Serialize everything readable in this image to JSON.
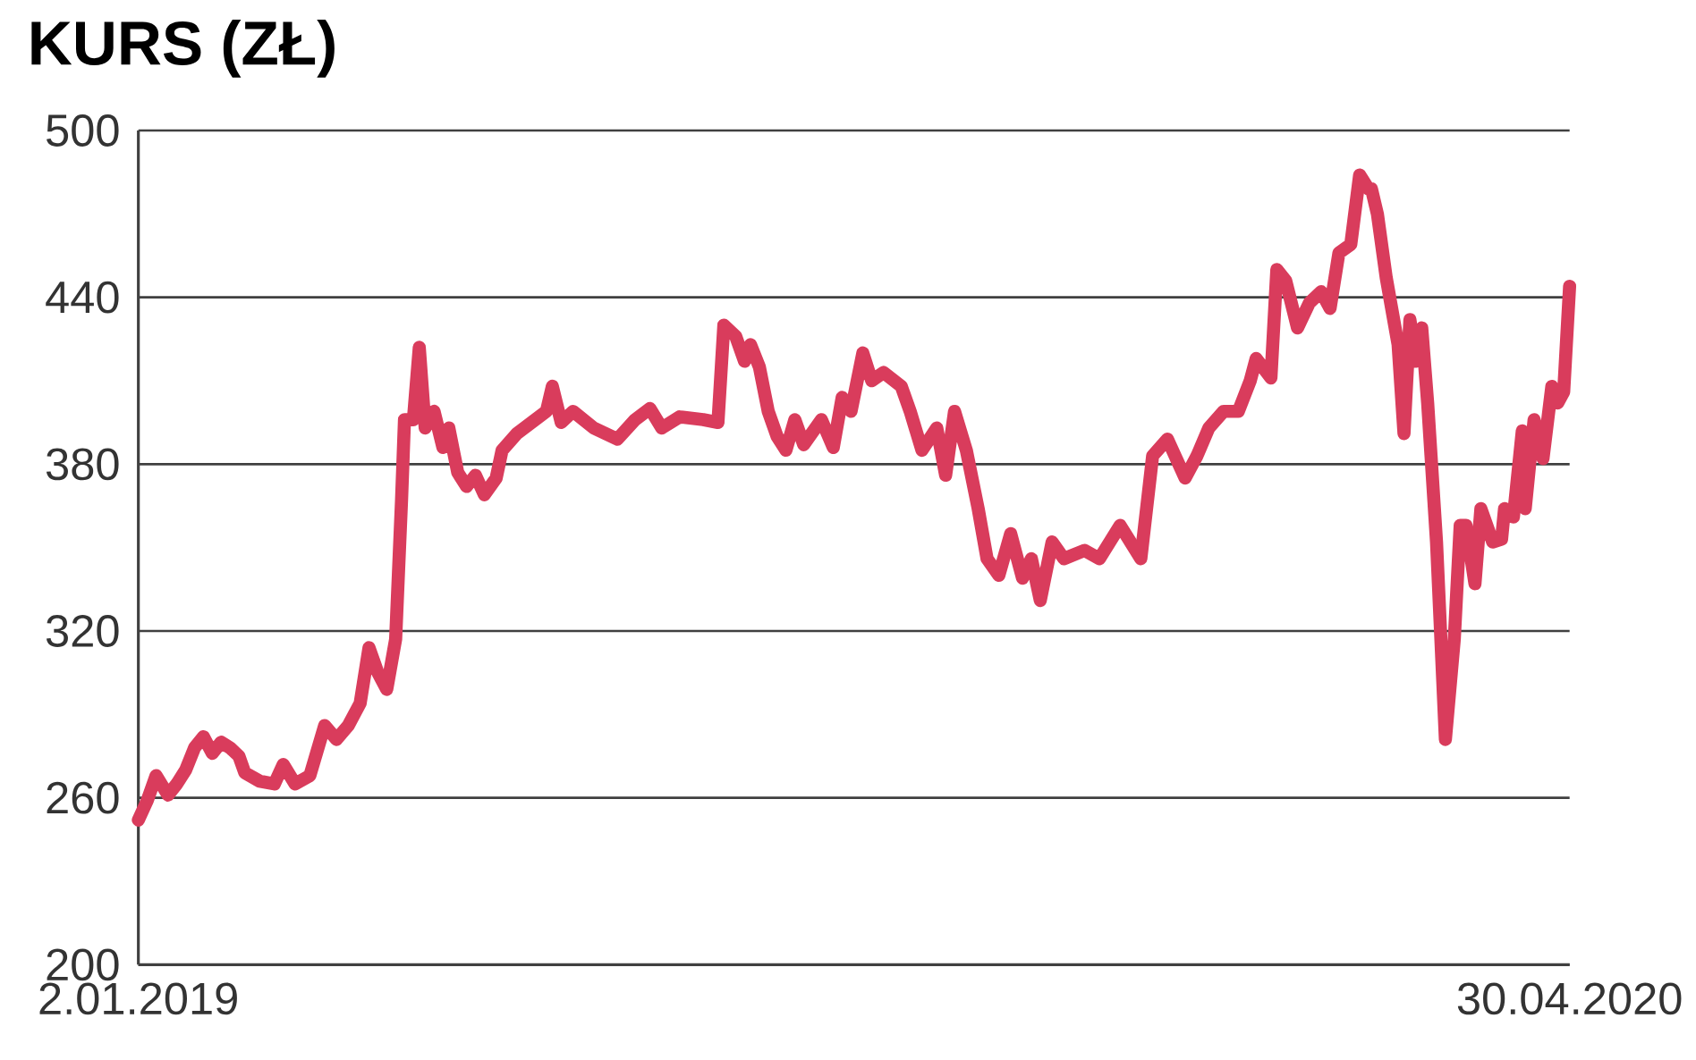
{
  "chart_data": {
    "type": "line",
    "title": "KURS (ZŁ)",
    "xlim": [
      "2019-01-02",
      "2020-04-30"
    ],
    "xticks": [
      {
        "value": "2019-01-02",
        "label": "2.01.2019"
      },
      {
        "value": "2020-04-30",
        "label": "30.04.2020"
      }
    ],
    "ylim": [
      200,
      500
    ],
    "yticks": [
      200,
      260,
      320,
      380,
      440,
      500
    ],
    "grid": "y",
    "marker": "none",
    "line_style": "solid",
    "series": [
      {
        "color": "#d93c5c",
        "x": [
          "2019-01-02",
          "2019-01-05",
          "2019-01-08",
          "2019-01-12",
          "2019-01-15",
          "2019-01-18",
          "2019-01-21",
          "2019-01-24",
          "2019-01-27",
          "2019-01-30",
          "2019-02-02",
          "2019-02-05",
          "2019-02-07",
          "2019-02-12",
          "2019-02-17",
          "2019-02-20",
          "2019-02-24",
          "2019-03-01",
          "2019-03-06",
          "2019-03-10",
          "2019-03-14",
          "2019-03-18",
          "2019-03-21",
          "2019-03-24",
          "2019-03-27",
          "2019-03-30",
          "2019-04-01",
          "2019-04-02",
          "2019-04-05",
          "2019-04-07",
          "2019-04-09",
          "2019-04-12",
          "2019-04-15",
          "2019-04-17",
          "2019-04-20",
          "2019-04-23",
          "2019-04-26",
          "2019-04-29",
          "2019-05-03",
          "2019-05-05",
          "2019-05-10",
          "2019-05-15",
          "2019-05-20",
          "2019-05-22",
          "2019-05-25",
          "2019-05-29",
          "2019-06-05",
          "2019-06-13",
          "2019-06-19",
          "2019-06-24",
          "2019-06-28",
          "2019-07-04",
          "2019-07-12",
          "2019-07-17",
          "2019-07-19",
          "2019-07-23",
          "2019-07-26",
          "2019-07-28",
          "2019-07-31",
          "2019-08-03",
          "2019-08-06",
          "2019-08-09",
          "2019-08-12",
          "2019-08-15",
          "2019-08-21",
          "2019-08-25",
          "2019-08-28",
          "2019-08-31",
          "2019-09-04",
          "2019-09-07",
          "2019-09-11",
          "2019-09-17",
          "2019-09-20",
          "2019-09-24",
          "2019-09-29",
          "2019-10-02",
          "2019-10-05",
          "2019-10-09",
          "2019-10-13",
          "2019-10-16",
          "2019-10-20",
          "2019-10-24",
          "2019-10-28",
          "2019-10-31",
          "2019-11-03",
          "2019-11-07",
          "2019-11-11",
          "2019-11-18",
          "2019-11-23",
          "2019-11-30",
          "2019-12-07",
          "2019-12-11",
          "2019-12-16",
          "2019-12-22",
          "2019-12-26",
          "2019-12-30",
          "2020-01-04",
          "2020-01-09",
          "2020-01-13",
          "2020-01-15",
          "2020-01-20",
          "2020-01-22",
          "2020-01-25",
          "2020-01-29",
          "2020-02-02",
          "2020-02-06",
          "2020-02-09",
          "2020-02-12",
          "2020-02-16",
          "2020-02-19",
          "2020-02-22",
          "2020-02-23",
          "2020-02-25",
          "2020-02-28",
          "2020-03-03",
          "2020-03-05",
          "2020-03-07",
          "2020-03-09",
          "2020-03-11",
          "2020-03-13",
          "2020-03-16",
          "2020-03-19",
          "2020-03-22",
          "2020-03-24",
          "2020-03-26",
          "2020-03-29",
          "2020-03-31",
          "2020-04-04",
          "2020-04-07",
          "2020-04-08",
          "2020-04-11",
          "2020-04-14",
          "2020-04-15",
          "2020-04-18",
          "2020-04-21",
          "2020-04-24",
          "2020-04-26",
          "2020-04-28",
          "2020-04-30"
        ],
        "values": [
          252,
          259,
          268,
          261,
          265,
          270,
          278,
          282,
          276,
          280,
          278,
          275,
          269,
          266,
          265,
          272,
          265,
          268,
          286,
          281,
          286,
          294,
          314,
          305,
          299,
          317,
          367,
          396,
          396,
          422,
          393,
          399,
          386,
          393,
          377,
          372,
          376,
          369,
          375,
          385,
          391,
          395,
          399,
          408,
          395,
          399,
          393,
          389,
          396,
          400,
          393,
          397,
          396,
          395,
          430,
          426,
          417,
          423,
          415,
          399,
          390,
          385,
          396,
          387,
          396,
          386,
          404,
          399,
          420,
          410,
          413,
          408,
          399,
          385,
          393,
          376,
          399,
          385,
          364,
          346,
          340,
          355,
          339,
          346,
          331,
          352,
          346,
          349,
          346,
          358,
          346,
          383,
          389,
          375,
          383,
          393,
          399,
          399,
          410,
          418,
          411,
          450,
          446,
          429,
          438,
          442,
          436,
          456,
          459,
          484,
          479,
          479,
          470,
          447,
          423,
          391,
          432,
          417,
          429,
          402,
          352,
          281,
          317,
          358,
          358,
          337,
          364,
          352,
          353,
          364,
          361,
          392,
          364,
          396,
          382,
          408,
          402,
          406,
          444
        ]
      }
    ]
  }
}
